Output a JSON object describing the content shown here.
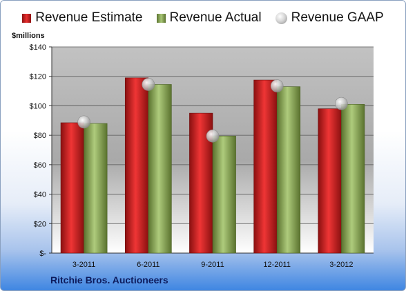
{
  "colors": {
    "estimate": "#d42222",
    "actual": "#8fae5b",
    "gaap": "#b9b9b9"
  },
  "unit_label": "$millions",
  "company_name": "Ritchie Bros. Auctioneers",
  "chart_data": {
    "type": "bar",
    "title": "",
    "xlabel": "",
    "ylabel": "$millions",
    "ylim": [
      0,
      140
    ],
    "ytick_values": [
      0,
      20,
      40,
      60,
      80,
      100,
      120,
      140
    ],
    "ytick_labels": [
      "$-",
      "$20",
      "$40",
      "$60",
      "$80",
      "$100",
      "$120",
      "$140"
    ],
    "categories": [
      "3-2011",
      "6-2011",
      "9-2011",
      "12-2011",
      "3-2012"
    ],
    "grid": true,
    "legend_position": "top",
    "series": [
      {
        "name": "Revenue Estimate",
        "kind": "bar",
        "values": [
          88.5,
          119,
          95,
          117.5,
          98
        ]
      },
      {
        "name": "Revenue Actual",
        "kind": "bar",
        "values": [
          88,
          114.5,
          79.5,
          113,
          101
        ]
      },
      {
        "name": "Revenue GAAP",
        "kind": "marker",
        "values": [
          89,
          114.5,
          79.5,
          113.5,
          101.5
        ]
      }
    ]
  }
}
